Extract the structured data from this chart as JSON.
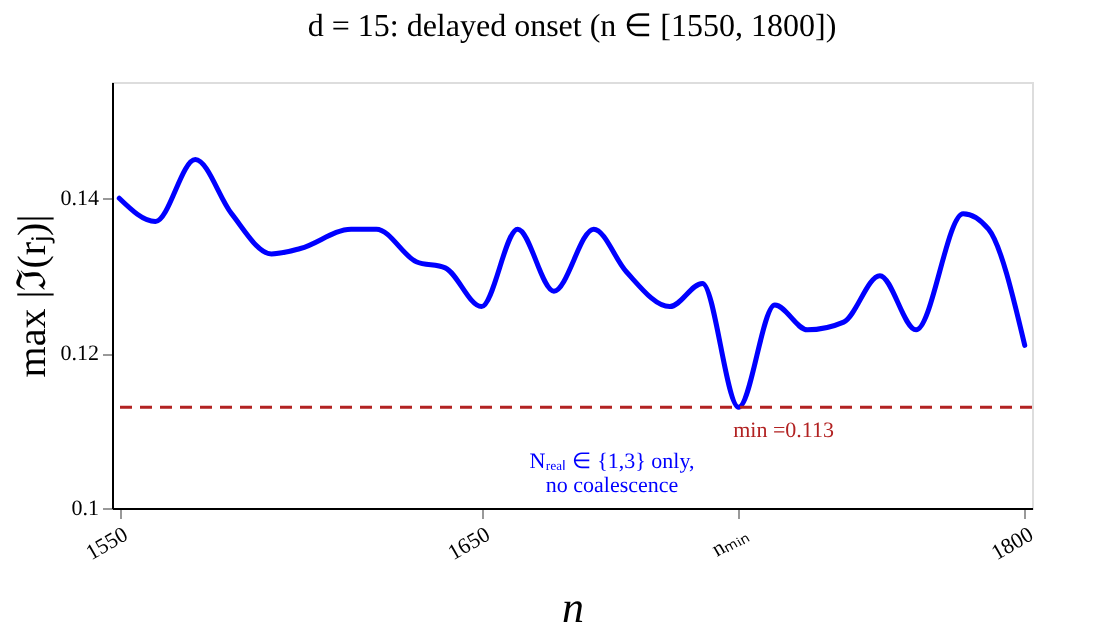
{
  "chart_data": {
    "type": "line",
    "title": "d = 15: delayed onset (n ∈ [1550, 1800])",
    "xlabel": "n",
    "ylabel": "max |ℑ(rⱼ)|",
    "x": [
      1550,
      1560,
      1571,
      1581,
      1592,
      1600,
      1614,
      1621,
      1632,
      1640,
      1650,
      1660,
      1670,
      1681,
      1690,
      1702,
      1711,
      1721,
      1731,
      1740,
      1750,
      1760,
      1770,
      1783,
      1790,
      1800
    ],
    "series": [
      {
        "color": "#0000ff",
        "values": [
          0.14,
          0.137,
          0.145,
          0.138,
          0.1328,
          0.1335,
          0.136,
          0.136,
          0.1318,
          0.131,
          0.126,
          0.136,
          0.128,
          0.136,
          0.1305,
          0.126,
          0.129,
          0.113,
          0.1262,
          0.123,
          0.124,
          0.13,
          0.123,
          0.138,
          0.136,
          0.121
        ]
      }
    ],
    "xlim": [
      1548,
      1802
    ],
    "xticks": [
      1550,
      1650,
      {
        "value": 1721,
        "label": "nₘᵢₙ"
      },
      1800
    ],
    "ylim": [
      0.1,
      0.155
    ],
    "yticks": [
      0.1,
      0.12,
      0.14
    ],
    "ref_lines": [
      {
        "axis": "y",
        "value": 0.113,
        "label": "min =0.113",
        "color": "#b22222",
        "line_style": "dashed"
      }
    ],
    "annotations": [
      "Nᵣₑₐₗ ∈ {1,3} only,",
      "no coalescence"
    ],
    "grid": false,
    "marker": "none",
    "line_style": "solid"
  }
}
